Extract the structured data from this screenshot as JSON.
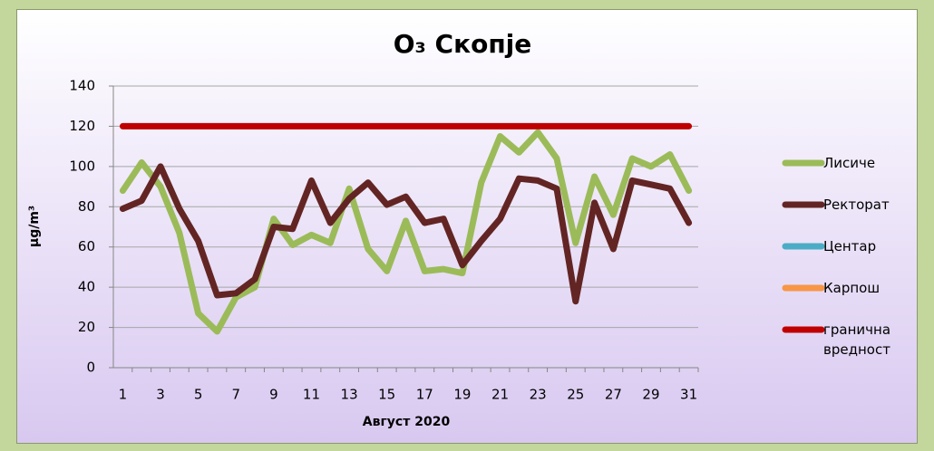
{
  "chart_data": {
    "type": "line",
    "title": "O₃ Скопје",
    "x_label": "Август 2020",
    "y_label": "µg/m³",
    "categories": [
      1,
      null,
      3,
      null,
      5,
      null,
      7,
      null,
      9,
      null,
      11,
      null,
      13,
      null,
      15,
      null,
      17,
      null,
      19,
      null,
      21,
      null,
      23,
      null,
      25,
      null,
      27,
      null,
      29,
      null,
      31
    ],
    "ylim": [
      0,
      140
    ],
    "yticks": [
      0,
      20,
      40,
      60,
      80,
      100,
      120,
      140
    ],
    "grid": true,
    "legend": "right",
    "series": [
      {
        "name": "Лисиче",
        "color": "#9bbb59",
        "values": [
          88,
          102,
          90,
          67,
          27,
          18,
          35,
          40,
          74,
          61,
          66,
          62,
          89,
          59,
          48,
          73,
          48,
          49,
          47,
          92,
          115,
          107,
          117,
          104,
          62,
          95,
          76,
          104,
          100,
          106,
          88
        ]
      },
      {
        "name": "Ректорат",
        "color": "#632523",
        "values": [
          79,
          83,
          100,
          79,
          63,
          36,
          37,
          44,
          70,
          69,
          93,
          72,
          84,
          92,
          81,
          85,
          72,
          74,
          51,
          63,
          74,
          94,
          93,
          89,
          33,
          82,
          59,
          93,
          91,
          89,
          72
        ]
      },
      {
        "name": "Центар",
        "color": "#4bacc6",
        "values": [
          null,
          null,
          null,
          null,
          null,
          null,
          null,
          null,
          null,
          null,
          null,
          null,
          null,
          null,
          null,
          null,
          null,
          null,
          null,
          null,
          null,
          null,
          null,
          null,
          null,
          null,
          null,
          null,
          null,
          null,
          null
        ]
      },
      {
        "name": "Карпош",
        "color": "#f79646",
        "values": [
          null,
          null,
          null,
          null,
          null,
          null,
          null,
          null,
          null,
          null,
          null,
          null,
          null,
          null,
          null,
          null,
          null,
          null,
          null,
          null,
          null,
          null,
          null,
          null,
          null,
          null,
          null,
          null,
          null,
          null,
          null
        ]
      },
      {
        "name": "гранична вредност",
        "color": "#c00000",
        "values": [
          120,
          120,
          120,
          120,
          120,
          120,
          120,
          120,
          120,
          120,
          120,
          120,
          120,
          120,
          120,
          120,
          120,
          120,
          120,
          120,
          120,
          120,
          120,
          120,
          120,
          120,
          120,
          120,
          120,
          120,
          120
        ]
      }
    ]
  }
}
